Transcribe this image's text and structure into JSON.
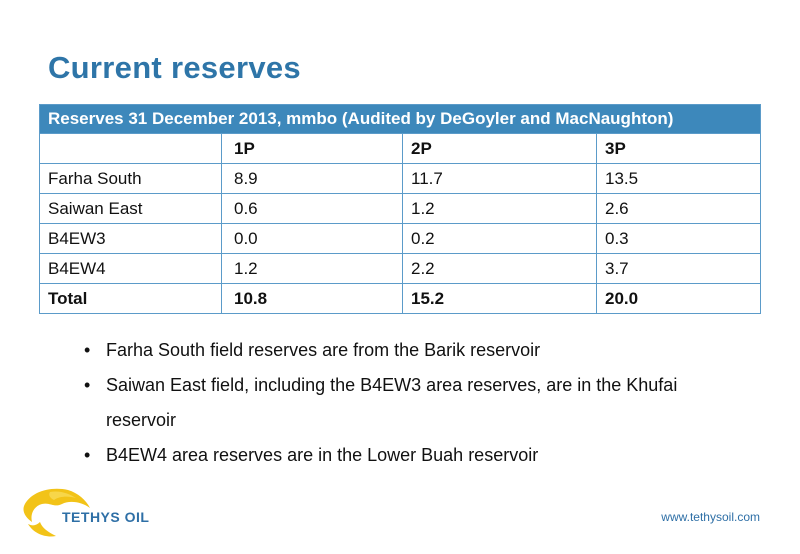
{
  "title": "Current reserves",
  "table": {
    "caption": "Reserves 31 December 2013, mmbo (Audited by DeGoyler and MacNaughton)",
    "columns": [
      "",
      "1P",
      "2P",
      "3P"
    ],
    "rows": [
      [
        "Farha South",
        "8.9",
        "11.7",
        "13.5"
      ],
      [
        "Saiwan East",
        "0.6",
        "1.2",
        "2.6"
      ],
      [
        "B4EW3",
        "0.0",
        "0.2",
        "0.3"
      ],
      [
        "B4EW4",
        "1.2",
        "2.2",
        "3.7"
      ]
    ],
    "total": [
      "Total",
      "10.8",
      "15.2",
      "20.0"
    ]
  },
  "bullets": [
    "Farha South field reserves are from the Barik reservoir",
    "Saiwan East field, including the B4EW3 area reserves, are in the Khufai reservoir",
    "B4EW4 area reserves are in the Lower Buah reservoir"
  ],
  "footer": {
    "logo_text": "TETHYS OIL",
    "url": "www.tethysoil.com"
  },
  "colors": {
    "accent": "#2e75a8",
    "table_header": "#3d88bb",
    "logo_yellow": "#f2c318"
  }
}
